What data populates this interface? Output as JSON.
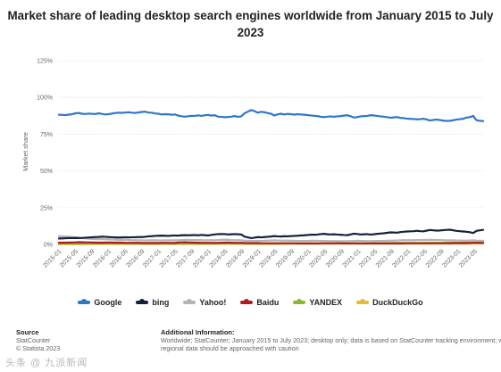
{
  "title_line1": "Market share of leading desktop search engines worldwide from January 2015 to July",
  "title_line2": "2023",
  "source": {
    "heading": "Source",
    "line1": "StatCounter",
    "line2": "© Statista 2023"
  },
  "additional_info": {
    "heading": "Additional Information:",
    "line1": "Worldwide; StatCounter; January 2015 to July 2023; desktop only; data is based on StatCounter tracking environment; wid",
    "line2": "regional data should be approached with caution"
  },
  "watermark": "头条 @ 九派新闻",
  "colors": {
    "google": "#2f77c7",
    "bing": "#14213d",
    "yahoo": "#b4b4b4",
    "baidu": "#b01c1c",
    "yandex": "#8bb92d",
    "duckduckgo": "#e5b93a",
    "grid": "#e3e3e3"
  },
  "chart_data": {
    "type": "line",
    "title": "Market share of leading desktop search engines worldwide from January 2015 to July 2023",
    "xlabel": "",
    "ylabel": "Market share",
    "ylim": [
      0,
      125
    ],
    "yticks": [
      "0%",
      "25%",
      "50%",
      "75%",
      "100%",
      "125%"
    ],
    "grid": true,
    "legend_position": "bottom",
    "x_tick_labels": [
      "2015-01",
      "2015-05",
      "2015-09",
      "2016-01",
      "2016-05",
      "2016-09",
      "2017-01",
      "2017-05",
      "2017-09",
      "2018-01",
      "2018-05",
      "2018-09",
      "2019-01",
      "2019-05",
      "2019-09",
      "2020-01",
      "2020-05",
      "2020-09",
      "2021-01",
      "2021-05",
      "2021-09",
      "2022-01",
      "2022-05",
      "2022-09",
      "2023-01",
      "2023-05"
    ],
    "x_start": "2015-01",
    "x_end": "2023-07",
    "series": [
      {
        "name": "Google",
        "color": "#2f77c7",
        "values": [
          88.2,
          88.1,
          88.0,
          88.3,
          88.6,
          89.2,
          89.4,
          88.9,
          88.7,
          89.0,
          88.8,
          88.7,
          89.2,
          88.8,
          88.4,
          88.6,
          89.0,
          89.4,
          89.6,
          89.5,
          89.7,
          89.9,
          89.6,
          89.4,
          89.8,
          90.1,
          90.3,
          89.7,
          89.6,
          89.1,
          88.9,
          88.4,
          88.6,
          88.5,
          88.2,
          88.4,
          87.6,
          87.2,
          86.9,
          87.2,
          87.5,
          87.4,
          87.8,
          87.4,
          87.9,
          88.1,
          87.6,
          87.9,
          86.9,
          86.8,
          86.5,
          86.7,
          86.9,
          87.3,
          86.8,
          87.1,
          89.2,
          90.3,
          91.4,
          90.7,
          89.6,
          90.2,
          89.9,
          89.3,
          88.9,
          87.7,
          88.5,
          88.9,
          88.4,
          88.8,
          88.6,
          88.3,
          88.6,
          88.4,
          88.2,
          88.0,
          87.7,
          87.5,
          87.3,
          86.8,
          86.6,
          86.9,
          87.1,
          86.8,
          87.1,
          87.3,
          87.6,
          87.9,
          87.2,
          86.3,
          86.6,
          87.1,
          87.3,
          87.4,
          87.9,
          87.7,
          87.4,
          87.1,
          86.9,
          86.6,
          86.2,
          86.4,
          86.6,
          86.1,
          85.9,
          85.6,
          85.4,
          85.3,
          85.1,
          85.2,
          85.5,
          84.9,
          84.3,
          84.7,
          84.9,
          84.6,
          84.2,
          84.0,
          84.1,
          84.5,
          84.9,
          85.2,
          85.5,
          86.3,
          86.6,
          87.4,
          84.5,
          84.1,
          83.9
        ]
      },
      {
        "name": "bing",
        "color": "#14213d",
        "values": [
          4.0,
          4.1,
          4.2,
          4.3,
          4.3,
          4.4,
          4.3,
          4.4,
          4.6,
          4.7,
          4.9,
          5.0,
          5.1,
          5.3,
          5.2,
          5.0,
          4.9,
          4.8,
          4.7,
          4.8,
          4.9,
          4.8,
          4.9,
          4.9,
          5.0,
          5.0,
          5.2,
          5.5,
          5.6,
          5.8,
          5.9,
          6.0,
          5.9,
          5.8,
          6.0,
          6.1,
          6.0,
          6.2,
          6.3,
          6.2,
          6.3,
          6.4,
          6.2,
          6.5,
          6.3,
          6.1,
          6.5,
          6.8,
          7.0,
          7.1,
          7.0,
          6.8,
          6.9,
          7.0,
          6.9,
          6.8,
          5.3,
          4.8,
          4.3,
          4.6,
          5.0,
          4.8,
          5.0,
          5.2,
          5.4,
          5.7,
          5.5,
          5.4,
          5.6,
          5.5,
          5.7,
          5.8,
          5.9,
          6.1,
          6.2,
          6.4,
          6.6,
          6.6,
          6.7,
          7.0,
          7.2,
          6.9,
          6.8,
          6.9,
          6.7,
          6.6,
          6.4,
          6.3,
          6.8,
          7.3,
          7.1,
          6.8,
          6.9,
          7.0,
          6.7,
          6.9,
          7.2,
          7.4,
          7.6,
          7.9,
          8.2,
          8.1,
          8.0,
          8.4,
          8.6,
          8.8,
          8.9,
          9.0,
          9.3,
          9.0,
          8.9,
          9.4,
          9.8,
          9.6,
          9.4,
          9.5,
          9.7,
          9.9,
          10.0,
          9.6,
          9.2,
          9.0,
          8.8,
          8.6,
          8.3,
          7.8,
          9.2,
          9.6,
          9.9
        ]
      },
      {
        "name": "Yahoo!",
        "color": "#b4b4b4",
        "values": [
          5.6,
          5.5,
          5.4,
          5.2,
          5.0,
          4.8,
          4.6,
          4.4,
          4.1,
          3.9,
          3.7,
          3.6,
          3.5,
          3.6,
          3.5,
          3.4,
          3.3,
          3.2,
          3.1,
          3.2,
          3.1,
          3.0,
          2.9,
          2.9,
          2.8,
          2.8,
          2.7,
          2.8,
          2.9,
          2.8,
          2.8,
          2.7,
          2.8,
          2.8,
          2.8,
          2.8,
          2.9,
          3.0,
          3.1,
          3.1,
          3.0,
          3.0,
          3.0,
          2.9,
          2.8,
          2.9,
          2.9,
          2.8,
          3.0,
          3.1,
          3.2,
          3.1,
          3.0,
          2.9,
          2.9,
          2.8,
          2.6,
          2.5,
          2.4,
          2.4,
          2.5,
          2.4,
          2.5,
          2.6,
          2.7,
          2.8,
          2.7,
          2.6,
          2.6,
          2.6,
          2.5,
          2.5,
          2.4,
          2.4,
          2.4,
          2.4,
          2.5,
          2.5,
          2.5,
          2.4,
          2.4,
          2.3,
          2.3,
          2.3,
          2.2,
          2.2,
          2.2,
          2.2,
          2.3,
          2.4,
          2.5,
          2.4,
          2.4,
          2.3,
          2.3,
          2.3,
          2.4,
          2.4,
          2.4,
          2.5,
          2.6,
          2.6,
          2.7,
          2.8,
          2.9,
          2.9,
          2.9,
          2.9,
          3.0,
          3.0,
          3.0,
          3.1,
          3.2,
          3.1,
          3.0,
          3.0,
          2.9,
          2.8,
          2.8,
          2.8,
          2.7,
          2.7,
          2.6,
          2.6,
          2.7,
          2.8,
          2.6,
          2.5,
          2.5
        ]
      },
      {
        "name": "Baidu",
        "color": "#b01c1c",
        "values": [
          1.2,
          1.2,
          1.2,
          1.3,
          1.3,
          1.4,
          1.5,
          1.5,
          1.4,
          1.4,
          1.3,
          1.3,
          1.2,
          1.2,
          1.3,
          1.3,
          1.3,
          1.2,
          1.2,
          1.2,
          1.1,
          1.1,
          1.1,
          1.1,
          1.1,
          1.0,
          1.0,
          1.0,
          1.0,
          1.0,
          1.0,
          1.1,
          1.1,
          1.1,
          1.0,
          1.0,
          1.3,
          1.4,
          1.5,
          1.4,
          1.3,
          1.2,
          1.2,
          1.1,
          1.1,
          1.1,
          1.1,
          1.0,
          1.1,
          1.2,
          1.2,
          1.3,
          1.2,
          1.1,
          1.1,
          1.1,
          1.0,
          0.9,
          0.9,
          0.9,
          0.9,
          0.8,
          0.8,
          0.8,
          0.8,
          0.8,
          0.8,
          0.8,
          0.8,
          0.8,
          0.8,
          0.8,
          0.7,
          0.7,
          0.7,
          0.7,
          0.7,
          0.7,
          0.7,
          0.8,
          0.8,
          0.8,
          0.8,
          0.8,
          0.8,
          0.8,
          0.7,
          0.7,
          0.7,
          0.8,
          0.7,
          0.7,
          0.7,
          0.7,
          0.7,
          0.7,
          0.7,
          0.7,
          0.7,
          0.7,
          0.7,
          0.7,
          0.7,
          0.7,
          0.7,
          0.8,
          0.8,
          0.8,
          0.8,
          0.8,
          0.8,
          0.8,
          0.8,
          0.8,
          0.8,
          0.8,
          0.8,
          0.8,
          0.8,
          0.9,
          0.9,
          0.9,
          0.9,
          0.9,
          1.0,
          1.1,
          1.1,
          1.1,
          1.1
        ]
      },
      {
        "name": "YANDEX",
        "color": "#8bb92d",
        "values": [
          0.5,
          0.5,
          0.5,
          0.5,
          0.5,
          0.5,
          0.5,
          0.6,
          0.6,
          0.6,
          0.6,
          0.6,
          0.6,
          0.6,
          0.6,
          0.6,
          0.6,
          0.6,
          0.6,
          0.6,
          0.6,
          0.6,
          0.6,
          0.6,
          0.6,
          0.6,
          0.6,
          0.6,
          0.6,
          0.6,
          0.6,
          0.6,
          0.6,
          0.6,
          0.6,
          0.6,
          0.6,
          0.6,
          0.6,
          0.6,
          0.6,
          0.6,
          0.6,
          0.6,
          0.6,
          0.6,
          0.6,
          0.6,
          0.6,
          0.6,
          0.6,
          0.6,
          0.6,
          0.6,
          0.6,
          0.6,
          0.6,
          0.6,
          0.6,
          0.6,
          0.6,
          0.6,
          0.6,
          0.6,
          0.6,
          0.6,
          0.6,
          0.6,
          0.6,
          0.6,
          0.7,
          0.7,
          0.7,
          0.7,
          0.7,
          0.7,
          0.7,
          0.7,
          0.7,
          0.7,
          0.7,
          0.7,
          0.7,
          0.7,
          0.7,
          0.7,
          0.7,
          0.8,
          0.8,
          0.8,
          0.8,
          0.8,
          0.8,
          0.8,
          0.8,
          0.9,
          0.9,
          0.9,
          0.9,
          0.9,
          0.9,
          1.0,
          1.0,
          1.0,
          1.0,
          1.0,
          1.0,
          1.0,
          1.0,
          1.0,
          1.1,
          1.1,
          1.1,
          1.1,
          1.1,
          1.1,
          1.1,
          1.2,
          1.2,
          1.2,
          1.2,
          1.2,
          1.2,
          1.2,
          1.3,
          1.3,
          1.3,
          1.3,
          1.3
        ]
      },
      {
        "name": "DuckDuckGo",
        "color": "#e5b93a",
        "values": [
          0.2,
          0.2,
          0.2,
          0.2,
          0.2,
          0.2,
          0.2,
          0.2,
          0.2,
          0.3,
          0.3,
          0.3,
          0.3,
          0.3,
          0.3,
          0.3,
          0.3,
          0.3,
          0.3,
          0.3,
          0.3,
          0.3,
          0.3,
          0.3,
          0.3,
          0.3,
          0.3,
          0.3,
          0.3,
          0.3,
          0.3,
          0.3,
          0.3,
          0.3,
          0.3,
          0.3,
          0.3,
          0.3,
          0.3,
          0.3,
          0.3,
          0.3,
          0.3,
          0.3,
          0.3,
          0.3,
          0.3,
          0.4,
          0.4,
          0.4,
          0.4,
          0.4,
          0.4,
          0.4,
          0.4,
          0.4,
          0.4,
          0.4,
          0.4,
          0.4,
          0.4,
          0.4,
          0.4,
          0.4,
          0.4,
          0.4,
          0.4,
          0.5,
          0.5,
          0.5,
          0.5,
          0.5,
          0.5,
          0.5,
          0.5,
          0.5,
          0.5,
          0.5,
          0.5,
          0.5,
          0.5,
          0.5,
          0.5,
          0.6,
          0.6,
          0.6,
          0.6,
          0.6,
          0.6,
          0.6,
          0.6,
          0.6,
          0.6,
          0.6,
          0.6,
          0.6,
          0.6,
          0.6,
          0.6,
          0.6,
          0.6,
          0.6,
          0.6,
          0.6,
          0.6,
          0.6,
          0.6,
          0.6,
          0.6,
          0.6,
          0.6,
          0.6,
          0.6,
          0.6,
          0.6,
          0.6,
          0.6,
          0.6,
          0.6,
          0.6,
          0.6,
          0.6,
          0.6,
          0.6,
          0.6,
          0.6,
          0.6,
          0.6,
          0.6
        ]
      }
    ]
  }
}
